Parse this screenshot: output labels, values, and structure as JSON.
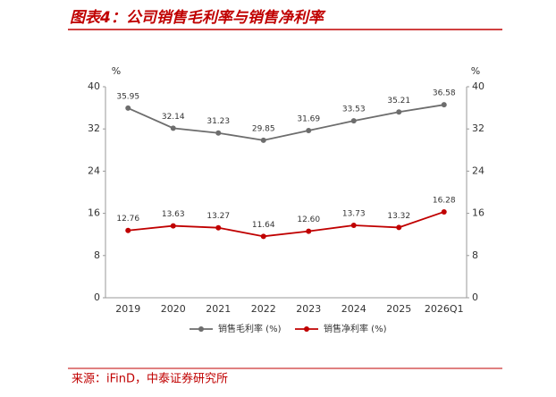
{
  "chart_data": {
    "type": "line",
    "title": "图表4：公司销售毛利率与销售净利率",
    "source": "来源：iFinD，中泰证券研究所",
    "y_unit": "%",
    "y2_unit": "%",
    "categories": [
      "2019",
      "2020",
      "2021",
      "2022",
      "2023",
      "2024",
      "2025",
      "2026Q1"
    ],
    "series": [
      {
        "name": "销售毛利率 (%)",
        "color": "#6d6d6d",
        "values": [
          35.95,
          32.14,
          31.23,
          29.85,
          31.69,
          33.53,
          35.21,
          36.58
        ],
        "value_labels": [
          "35.95",
          "32.14",
          "31.23",
          "29.85",
          "31.69",
          "33.53",
          "35.21",
          "36.58"
        ]
      },
      {
        "name": "销售净利率 (%)",
        "color": "#c00000",
        "values": [
          12.76,
          13.63,
          13.27,
          11.64,
          12.6,
          13.73,
          13.32,
          16.28
        ],
        "value_labels": [
          "12.76",
          "13.63",
          "13.27",
          "11.64",
          "12.60",
          "13.73",
          "13.32",
          "16.28"
        ]
      }
    ],
    "ylim": [
      0,
      40
    ],
    "yticks": [
      0,
      8,
      16,
      24,
      32,
      40
    ],
    "y2lim": [
      0,
      40
    ],
    "y2ticks": [
      0,
      8,
      16,
      24,
      32,
      40
    ],
    "grid": false
  }
}
